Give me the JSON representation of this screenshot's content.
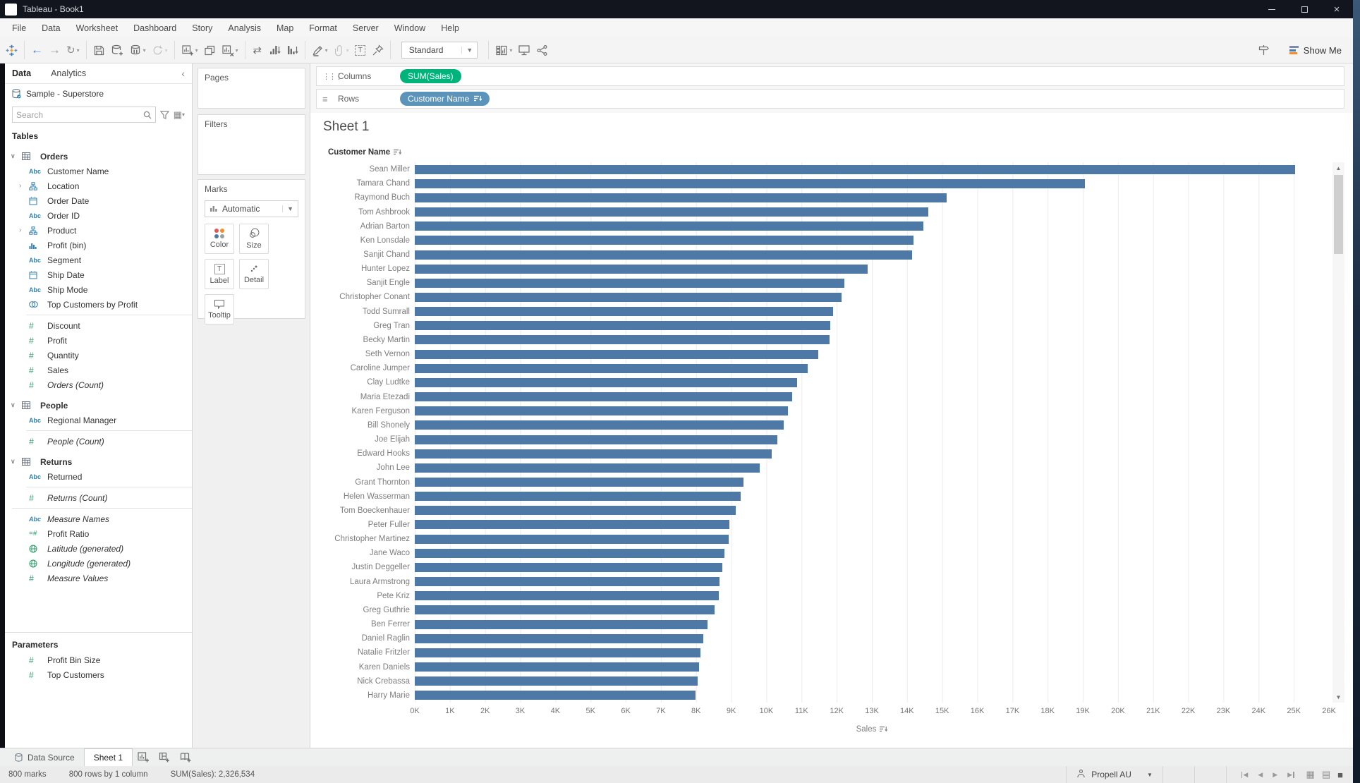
{
  "window": {
    "title": "Tableau - Book1"
  },
  "menu": {
    "items": [
      "File",
      "Data",
      "Worksheet",
      "Dashboard",
      "Story",
      "Analysis",
      "Map",
      "Format",
      "Server",
      "Window",
      "Help"
    ]
  },
  "toolbar": {
    "view_mode": "Standard",
    "show_me_label": "Show Me",
    "groups": [
      [
        "tableau-logo"
      ],
      [
        "back",
        "forward",
        "redo"
      ],
      [
        "save",
        "add-data",
        "pause-updates",
        "refresh"
      ],
      [
        "new-worksheet",
        "duplicate",
        "clear-sheet"
      ],
      [
        "swap-axes",
        "sort-ascending",
        "sort-descending"
      ],
      [
        "highlight",
        "group",
        "show-mark-labels",
        "fix-axes"
      ],
      [
        "view-mode"
      ],
      [
        "show-cards",
        "presentation-mode",
        "share"
      ]
    ],
    "right_icons": [
      "guidance",
      "show-me"
    ]
  },
  "sidebar": {
    "tabs": [
      {
        "label": "Data"
      },
      {
        "label": "Analytics"
      }
    ],
    "datasource": "Sample - Superstore",
    "search_placeholder": "Search",
    "tables_label": "Tables",
    "fields": [
      {
        "label": "Orders",
        "type": "table",
        "caret": "open"
      },
      {
        "label": "Customer Name",
        "type": "abc"
      },
      {
        "label": "Location",
        "type": "hierarchy",
        "caret": "closed"
      },
      {
        "label": "Order Date",
        "type": "calendar"
      },
      {
        "label": "Order ID",
        "type": "abc"
      },
      {
        "label": "Product",
        "type": "hierarchy",
        "caret": "closed"
      },
      {
        "label": "Profit (bin)",
        "type": "bin"
      },
      {
        "label": "Segment",
        "type": "abc"
      },
      {
        "label": "Ship Date",
        "type": "calendar"
      },
      {
        "label": "Ship Mode",
        "type": "abc"
      },
      {
        "label": "Top Customers by Profit",
        "type": "set"
      },
      {
        "divider": true
      },
      {
        "label": "Discount",
        "type": "num"
      },
      {
        "label": "Profit",
        "type": "num"
      },
      {
        "label": "Quantity",
        "type": "num"
      },
      {
        "label": "Sales",
        "type": "num"
      },
      {
        "label": "Orders (Count)",
        "type": "num",
        "italic": true
      },
      {
        "label": "People",
        "type": "table",
        "caret": "open"
      },
      {
        "label": "Regional Manager",
        "type": "abc"
      },
      {
        "divider": true
      },
      {
        "label": "People (Count)",
        "type": "num",
        "italic": true
      },
      {
        "label": "Returns",
        "type": "table",
        "caret": "open"
      },
      {
        "label": "Returned",
        "type": "abc"
      },
      {
        "divider": true
      },
      {
        "label": "Returns (Count)",
        "type": "num",
        "italic": true
      },
      {
        "divider": true,
        "wide": true
      },
      {
        "label": "Measure Names",
        "type": "abc",
        "italic": true
      },
      {
        "label": "Profit Ratio",
        "type": "calc"
      },
      {
        "label": "Latitude (generated)",
        "type": "globe",
        "italic": true
      },
      {
        "label": "Longitude (generated)",
        "type": "globe",
        "italic": true
      },
      {
        "label": "Measure Values",
        "type": "num",
        "italic": true
      }
    ],
    "parameters_label": "Parameters",
    "parameters": [
      {
        "label": "Profit Bin Size",
        "type": "num"
      },
      {
        "label": "Top Customers",
        "type": "num"
      }
    ]
  },
  "cards": {
    "pages_label": "Pages",
    "filters_label": "Filters",
    "marks_label": "Marks",
    "mark_type": "Automatic",
    "buttons": [
      {
        "label": "Color"
      },
      {
        "label": "Size"
      },
      {
        "label": "Label"
      },
      {
        "label": "Detail"
      },
      {
        "label": "Tooltip"
      }
    ]
  },
  "shelves": {
    "columns_label": "Columns",
    "rows_label": "Rows",
    "columns_pill": "SUM(Sales)",
    "rows_pill": "Customer Name",
    "rows_pill_sorted": "descending"
  },
  "sheet": {
    "title": "Sheet 1",
    "row_header": "Customer Name",
    "axis_label": "Sales"
  },
  "chart_data": {
    "type": "bar",
    "orientation": "horizontal",
    "title": "Sheet 1",
    "xlabel": "Sales",
    "ylabel": "Customer Name",
    "sort": "descending by SUM(Sales)",
    "grid": "vertical gridlines every 1K",
    "xlim": [
      0,
      26000
    ],
    "x_ticks": [
      "0K",
      "1K",
      "2K",
      "3K",
      "4K",
      "5K",
      "6K",
      "7K",
      "8K",
      "9K",
      "10K",
      "11K",
      "12K",
      "13K",
      "14K",
      "15K",
      "16K",
      "17K",
      "18K",
      "19K",
      "20K",
      "21K",
      "22K",
      "23K",
      "24K",
      "25K",
      "26K"
    ],
    "categories": [
      "Sean Miller",
      "Tamara Chand",
      "Raymond Buch",
      "Tom Ashbrook",
      "Adrian Barton",
      "Ken Lonsdale",
      "Sanjit Chand",
      "Hunter Lopez",
      "Sanjit Engle",
      "Christopher Conant",
      "Todd Sumrall",
      "Greg Tran",
      "Becky Martin",
      "Seth Vernon",
      "Caroline Jumper",
      "Clay Ludtke",
      "Maria Etezadi",
      "Karen Ferguson",
      "Bill Shonely",
      "Joe Elijah",
      "Edward Hooks",
      "John Lee",
      "Grant Thornton",
      "Helen Wasserman",
      "Tom Boeckenhauer",
      "Peter Fuller",
      "Christopher Martinez",
      "Jane Waco",
      "Justin Deggeller",
      "Laura Armstrong",
      "Pete Kriz",
      "Greg Guthrie",
      "Ben Ferrer",
      "Daniel Raglin",
      "Natalie Fritzler",
      "Karen Daniels",
      "Nick Crebassa",
      "Harry Marie"
    ],
    "values": [
      25043,
      19052,
      15117,
      14596,
      14474,
      14175,
      14142,
      12873,
      12209,
      12129,
      11892,
      11820,
      11789,
      11471,
      11165,
      10880,
      10724,
      10604,
      10502,
      10310,
      10153,
      9801,
      9351,
      9270,
      9134,
      8954,
      8924,
      8805,
      8750,
      8673,
      8647,
      8520,
      8332,
      8211,
      8122,
      8094,
      8035,
      7991
    ]
  },
  "sheet_tabs": {
    "items": [
      {
        "label": "Data Source"
      },
      {
        "label": "Sheet 1",
        "active": true
      }
    ],
    "new_tab_icons": [
      "new-worksheet",
      "new-dashboard",
      "new-story"
    ]
  },
  "status_bar": {
    "marks": "800 marks",
    "size": "800 rows by 1 column",
    "aggregate": "SUM(Sales): 2,326,534",
    "user": "Propell AU"
  },
  "colors": {
    "bar": "#4e79a7",
    "pill_green": "#00b37a",
    "pill_blue": "#5b93bb",
    "dimension_icon": "#2f7fae",
    "measure_icon": "#2f9e69",
    "titlebar": "#12151e"
  }
}
